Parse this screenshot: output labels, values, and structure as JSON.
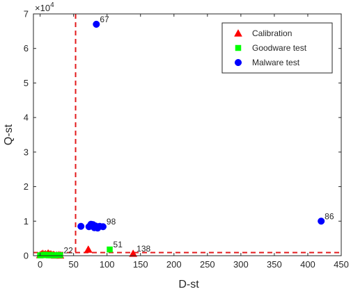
{
  "chart_data": {
    "type": "scatter",
    "title": "",
    "xlabel": "D-st",
    "ylabel": "Q-st",
    "y_exponent_label": "×10",
    "y_exponent_power": "4",
    "xlim": [
      -10,
      450
    ],
    "ylim": [
      0,
      70000
    ],
    "x_ticks": [
      0,
      50,
      100,
      150,
      200,
      250,
      300,
      350,
      400,
      450
    ],
    "y_ticks": [
      0,
      10000,
      20000,
      30000,
      40000,
      50000,
      60000,
      70000
    ],
    "y_tick_labels": [
      "0",
      "1",
      "2",
      "3",
      "4",
      "5",
      "6",
      "7"
    ],
    "x_tick_labels": [
      "0",
      "50",
      "100",
      "150",
      "200",
      "250",
      "300",
      "350",
      "400",
      "450"
    ],
    "grid": false,
    "legend_position": "top-right",
    "thresholds": {
      "x": 53,
      "y": 900,
      "color": "#e31a1c",
      "style": "dashed"
    },
    "series": [
      {
        "name": "Calibration",
        "marker": "triangle",
        "color": "#ff0000",
        "points": [
          [
            0,
            200
          ],
          [
            2,
            400
          ],
          [
            4,
            600
          ],
          [
            6,
            300
          ],
          [
            8,
            500
          ],
          [
            10,
            250
          ],
          [
            12,
            700
          ],
          [
            14,
            350
          ],
          [
            16,
            450
          ],
          [
            18,
            200
          ],
          [
            20,
            300
          ],
          [
            22,
            100
          ],
          [
            25,
            150
          ],
          [
            28,
            200
          ],
          [
            30,
            100
          ],
          [
            72,
            1800
          ],
          [
            139,
            600
          ]
        ]
      },
      {
        "name": "Goodware test",
        "marker": "square",
        "color": "#00ff00",
        "points": [
          [
            0,
            100
          ],
          [
            3,
            200
          ],
          [
            5,
            150
          ],
          [
            7,
            300
          ],
          [
            10,
            200
          ],
          [
            13,
            100
          ],
          [
            15,
            250
          ],
          [
            18,
            150
          ],
          [
            22,
            100
          ],
          [
            25,
            200
          ],
          [
            30,
            150
          ],
          [
            104,
            1800
          ]
        ]
      },
      {
        "name": "Malware test",
        "marker": "circle",
        "color": "#0000ff",
        "points": [
          [
            61,
            8500
          ],
          [
            73,
            8400
          ],
          [
            76,
            9100
          ],
          [
            79,
            9000
          ],
          [
            81,
            8100
          ],
          [
            83,
            8600
          ],
          [
            86,
            8000
          ],
          [
            89,
            8500
          ],
          [
            94,
            8400
          ],
          [
            84,
            67000
          ],
          [
            420,
            10000
          ]
        ]
      }
    ],
    "annotations": [
      {
        "text": "67",
        "x": 84,
        "y": 67000
      },
      {
        "text": "98",
        "x": 94,
        "y": 8400
      },
      {
        "text": "86",
        "x": 420,
        "y": 10000
      },
      {
        "text": "22",
        "x": 30,
        "y": 100
      },
      {
        "text": "51",
        "x": 104,
        "y": 1800
      },
      {
        "text": "138",
        "x": 139,
        "y": 600
      }
    ]
  }
}
